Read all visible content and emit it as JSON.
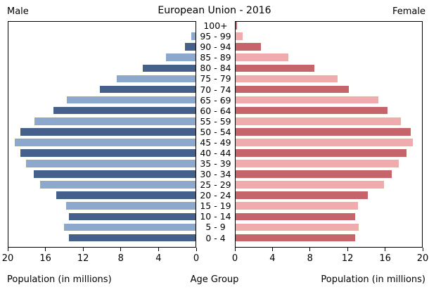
{
  "title": "European Union - 2016",
  "left_header": "Male",
  "right_header": "Female",
  "xlabel_left": "Population (in millions)",
  "xlabel_center": "Age Group",
  "xlabel_right": "Population (in millions)",
  "chart_data": {
    "type": "bar",
    "subtype": "population-pyramid",
    "title": "European Union - 2016",
    "categories": [
      "100+",
      "95 - 99",
      "90 - 94",
      "85 - 89",
      "80 - 84",
      "75 - 79",
      "70 - 74",
      "65 - 69",
      "60 - 64",
      "55 - 59",
      "50 - 54",
      "45 - 49",
      "40 - 44",
      "35 - 39",
      "30 - 34",
      "25 - 29",
      "20 - 24",
      "15 - 19",
      "10 - 14",
      "5 - 9",
      "0 - 4"
    ],
    "series": [
      {
        "name": "Male",
        "values": [
          0.1,
          0.5,
          1.2,
          3.2,
          5.7,
          8.5,
          10.3,
          13.8,
          15.3,
          17.3,
          18.8,
          19.4,
          18.8,
          18.2,
          17.4,
          16.7,
          15.0,
          13.9,
          13.6,
          14.1,
          13.6
        ]
      },
      {
        "name": "Female",
        "values": [
          0.2,
          0.8,
          2.8,
          5.7,
          8.5,
          11.0,
          12.2,
          15.4,
          16.4,
          17.8,
          18.9,
          19.1,
          18.4,
          17.6,
          16.8,
          16.0,
          14.3,
          13.2,
          12.9,
          13.3,
          12.9
        ]
      }
    ],
    "xlim": [
      0,
      20
    ],
    "xlabel": "Population (in millions)",
    "ylabel": "Age Group",
    "male_tick_labels": [
      "20",
      "16",
      "12",
      "8",
      "4",
      "0"
    ],
    "female_tick_labels": [
      "0",
      "4",
      "8",
      "12",
      "16",
      "20"
    ],
    "legend_position": "none",
    "grid": false,
    "colors": {
      "male_dark": "#45608A",
      "male_light": "#8CA9CD",
      "female_dark": "#C5646B",
      "female_light": "#F0ABAF",
      "bar_edge": "#FFFFF0",
      "axis": "#000000"
    }
  }
}
